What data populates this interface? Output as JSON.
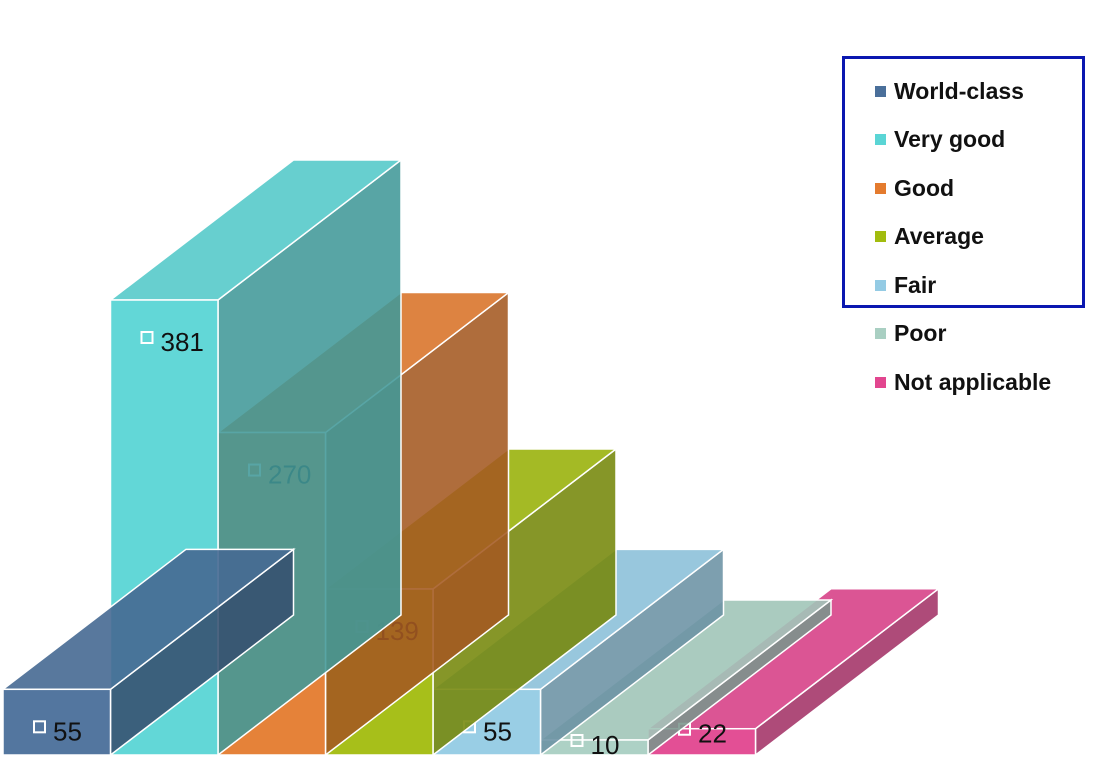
{
  "chart_data": {
    "type": "bar",
    "title": "",
    "xlabel": "",
    "ylabel": "",
    "ylim": [
      0,
      400
    ],
    "grid": false,
    "legend_position": "top-right",
    "categories": [
      "World-class",
      "Very good",
      "Good",
      "Average",
      "Fair",
      "Poor",
      "Not applicable"
    ],
    "values": [
      55,
      381,
      270,
      139,
      55,
      10,
      22
    ],
    "data_labels": [
      "55",
      "381",
      "270",
      "139",
      "55",
      "10",
      "22"
    ],
    "colors": [
      "#4a6f9a",
      "#5ad5d5",
      "#e47b2e",
      "#a2bc0e",
      "#94cbe4",
      "#a9cfc2",
      "#e2468f"
    ],
    "legend": [
      "World-class",
      "Very good",
      "Good",
      "Average",
      "Fair",
      "Poor",
      "Not applicable"
    ]
  }
}
